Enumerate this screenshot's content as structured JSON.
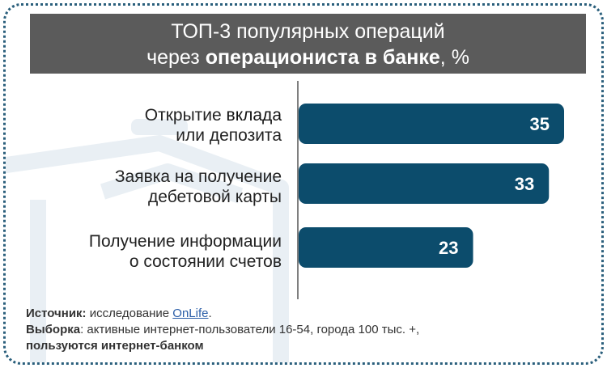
{
  "title": {
    "line1": "ТОП-3 популярных операций",
    "line2_pre": "через ",
    "line2_bold": "операциониста в банке",
    "line2_post": ", %"
  },
  "chart_data": {
    "type": "bar",
    "orientation": "horizontal",
    "categories": [
      {
        "line1_a": "Открытие ",
        "line1_b": "вклада",
        "line2": "или депозита"
      },
      {
        "line1_a": "Заявка на получение",
        "line1_b": "",
        "line2": "дебетовой карты"
      },
      {
        "line1_a": "Получение информации",
        "line1_b": "",
        "line2": "о состоянии счетов"
      }
    ],
    "values": [
      35,
      33,
      23
    ],
    "xlim": [
      0,
      35
    ],
    "grid": false,
    "bar_color": "#0c4c6c",
    "label_color": "#ffffff"
  },
  "footer": {
    "source_label": "Источник:",
    "source_text": " исследование ",
    "source_link": "OnLife",
    "source_end": ".",
    "sample_label": "Выборка",
    "sample_text": ": активные интернет-пользователи 16-54, города 100 тыс. +,",
    "sample_line2": "пользуются интернет-банком"
  }
}
